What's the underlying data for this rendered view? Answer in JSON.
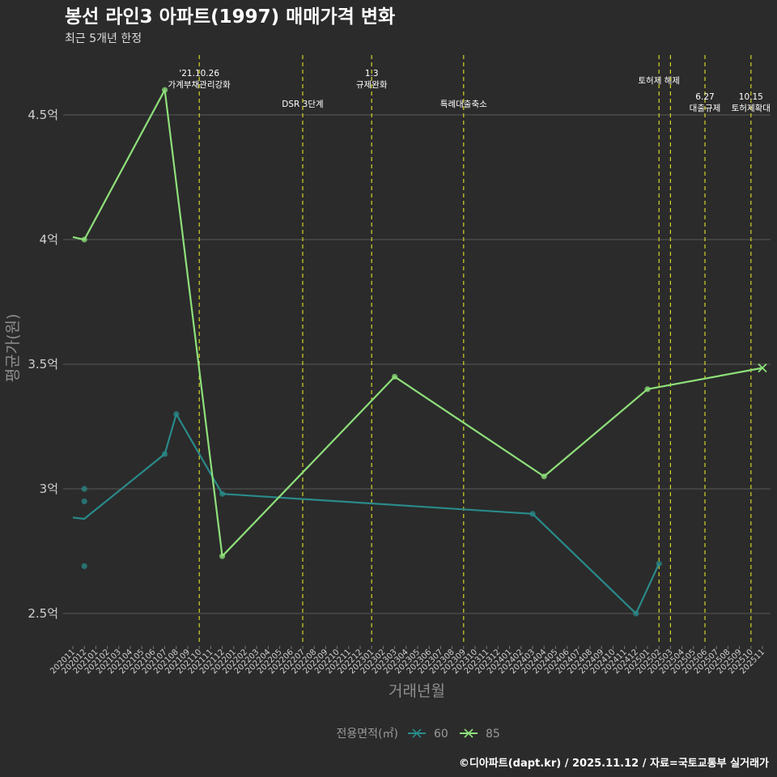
{
  "chart_data": {
    "type": "line",
    "title": "봉선 라인3 아파트(1997) 매매가격 변화",
    "subtitle": "최근 5개년 한정",
    "xlabel": "거래년월",
    "ylabel": "평균가(원)",
    "ylim": [
      2.38,
      4.75
    ],
    "yticks": [
      {
        "value": 2.5,
        "label": "2.5억"
      },
      {
        "value": 3.0,
        "label": "3억"
      },
      {
        "value": 3.5,
        "label": "3.5억"
      },
      {
        "value": 4.0,
        "label": "4억"
      },
      {
        "value": 4.5,
        "label": "4.5억"
      }
    ],
    "categories": [
      "202011",
      "202012",
      "202101",
      "202102",
      "202103",
      "202104",
      "202105",
      "202106",
      "202107",
      "202108",
      "202109",
      "202110",
      "202111",
      "202112",
      "202201",
      "202202",
      "202203",
      "202204",
      "202205",
      "202206",
      "202207",
      "202208",
      "202209",
      "202210",
      "202211",
      "202212",
      "202301",
      "202302",
      "202303",
      "202304",
      "202305",
      "202306",
      "202307",
      "202308",
      "202309",
      "202310",
      "202311",
      "202312",
      "202401",
      "202402",
      "202403",
      "202404",
      "202405",
      "202406",
      "202407",
      "202408",
      "202409",
      "202410",
      "202411",
      "202412",
      "202501",
      "202502",
      "202503",
      "202504",
      "202505",
      "202506",
      "202507",
      "202508",
      "202509",
      "202510",
      "202511"
    ],
    "series": [
      {
        "name": "60",
        "color": "#2a8a8a",
        "line": [
          {
            "x": "202011",
            "y": 2.885
          },
          {
            "x": "202012",
            "y": 2.88
          },
          {
            "x": "202107",
            "y": 3.14
          },
          {
            "x": "202108",
            "y": 3.3
          },
          {
            "x": "202112",
            "y": 2.98
          },
          {
            "x": "202403",
            "y": 2.9
          },
          {
            "x": "202412",
            "y": 2.5
          },
          {
            "x": "202502",
            "y": 2.7
          }
        ],
        "points": [
          {
            "x": "202012",
            "y": 3.0
          },
          {
            "x": "202012",
            "y": 2.95
          },
          {
            "x": "202012",
            "y": 2.69
          },
          {
            "x": "202107",
            "y": 3.14
          },
          {
            "x": "202108",
            "y": 3.3
          },
          {
            "x": "202112",
            "y": 2.98
          },
          {
            "x": "202403",
            "y": 2.9
          },
          {
            "x": "202412",
            "y": 2.5
          },
          {
            "x": "202502",
            "y": 2.7
          }
        ]
      },
      {
        "name": "85",
        "color": "#8ee07a",
        "line": [
          {
            "x": "202011",
            "y": 4.01
          },
          {
            "x": "202012",
            "y": 4.0
          },
          {
            "x": "202107",
            "y": 4.6
          },
          {
            "x": "202112",
            "y": 2.73
          },
          {
            "x": "202303",
            "y": 3.45
          },
          {
            "x": "202404",
            "y": 3.05
          },
          {
            "x": "202501",
            "y": 3.4
          },
          {
            "x": "202511",
            "y": 3.485
          }
        ],
        "points": [
          {
            "x": "202012",
            "y": 4.0
          },
          {
            "x": "202107",
            "y": 4.6
          },
          {
            "x": "202112",
            "y": 2.73
          },
          {
            "x": "202303",
            "y": 3.45
          },
          {
            "x": "202404",
            "y": 3.05
          },
          {
            "x": "202501",
            "y": 3.4
          }
        ],
        "last_marker": {
          "x": "202511",
          "y": 3.485
        }
      }
    ],
    "events": [
      {
        "x": "202110",
        "lines": [
          "'21.10.26",
          "가계부채관리강화"
        ],
        "row": 0
      },
      {
        "x": "202207",
        "lines": [
          "DSR 3단계"
        ],
        "row": 2
      },
      {
        "x": "202301",
        "lines": [
          "1.3",
          "규제완화"
        ],
        "row": 0
      },
      {
        "x": "202309",
        "lines": [
          "특례대출축소"
        ],
        "row": 2
      },
      {
        "x": "202502",
        "lines": [
          "토허제 해제"
        ],
        "row": 1
      },
      {
        "x": "202503",
        "lines": [],
        "row": 1
      },
      {
        "x": "202506",
        "lines": [
          "6.27",
          "대출규제"
        ],
        "row": 1.5
      },
      {
        "x": "202510",
        "lines": [
          "10.15",
          "토허제확대"
        ],
        "row": 1.5
      }
    ],
    "event_color": "#d4d42a",
    "grid_color": "#5a5a5a",
    "legend": {
      "title": "전용면적(㎡)",
      "position": "bottom",
      "items": [
        "60",
        "85"
      ]
    }
  },
  "caption": "©디아파트(dapt.kr) / 2025.11.12 / 자료=국토교통부 실거래가"
}
